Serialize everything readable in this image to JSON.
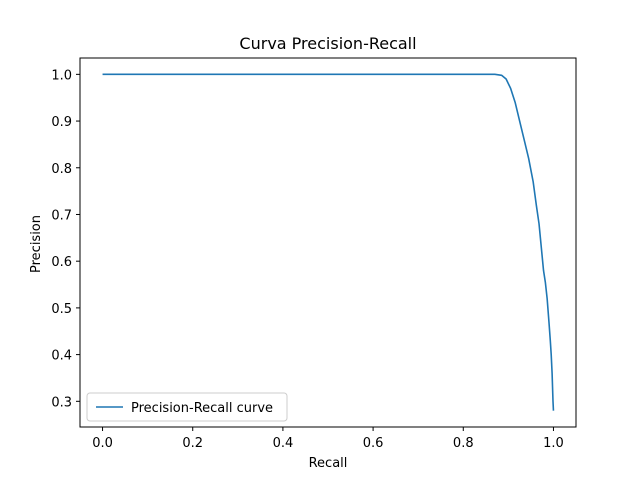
{
  "chart_data": {
    "type": "line",
    "title": "Curva Precision-Recall",
    "xlabel": "Recall",
    "ylabel": "Precision",
    "xlim": [
      -0.05,
      1.05
    ],
    "ylim": [
      0.245,
      1.035
    ],
    "x_ticks": [
      0.0,
      0.2,
      0.4,
      0.6,
      0.8,
      1.0
    ],
    "x_tick_labels": [
      "0.0",
      "0.2",
      "0.4",
      "0.6",
      "0.8",
      "1.0"
    ],
    "y_ticks": [
      0.3,
      0.4,
      0.5,
      0.6,
      0.7,
      0.8,
      0.9,
      1.0
    ],
    "y_tick_labels": [
      "0.3",
      "0.4",
      "0.5",
      "0.6",
      "0.7",
      "0.8",
      "0.9",
      "1.0"
    ],
    "grid": false,
    "legend_position": "lower-left",
    "series": [
      {
        "name": "Precision-Recall curve",
        "color": "#1f77b4",
        "x": [
          0.0,
          0.2,
          0.4,
          0.6,
          0.8,
          0.87,
          0.885,
          0.895,
          0.905,
          0.915,
          0.925,
          0.935,
          0.945,
          0.955,
          0.962,
          0.968,
          0.973,
          0.978,
          0.982,
          0.986,
          0.99,
          0.993,
          0.995,
          0.997,
          0.998,
          0.999,
          1.0
        ],
        "y": [
          1.0,
          1.0,
          1.0,
          1.0,
          1.0,
          1.0,
          0.998,
          0.99,
          0.97,
          0.94,
          0.9,
          0.86,
          0.82,
          0.77,
          0.72,
          0.68,
          0.63,
          0.58,
          0.555,
          0.52,
          0.47,
          0.43,
          0.4,
          0.36,
          0.33,
          0.3,
          0.28
        ]
      }
    ]
  }
}
